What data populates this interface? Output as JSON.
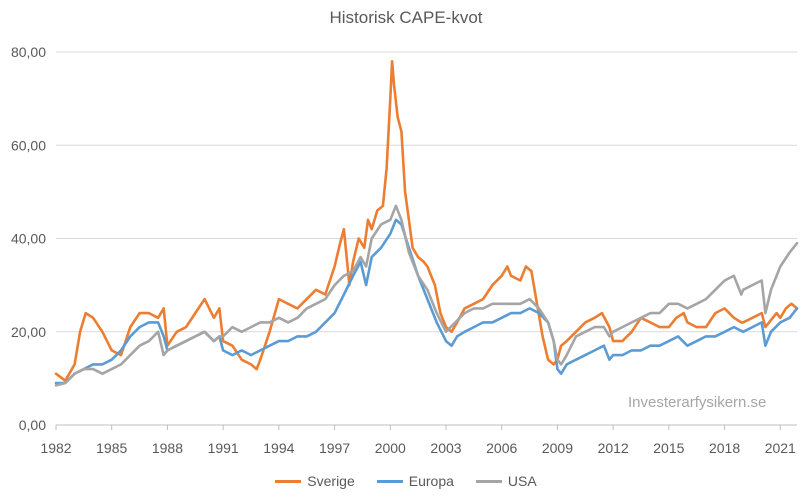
{
  "chart_data": {
    "type": "line",
    "title": "Historisk CAPE-kvot",
    "xlabel": "",
    "ylabel": "",
    "xlim": [
      1982,
      2021.9
    ],
    "ylim": [
      0,
      80
    ],
    "x_ticks": [
      "1982",
      "1985",
      "1988",
      "1991",
      "1994",
      "1997",
      "2000",
      "2003",
      "2006",
      "2009",
      "2012",
      "2015",
      "2018",
      "2021"
    ],
    "y_ticks": [
      "0,00",
      "20,00",
      "40,00",
      "60,00",
      "80,00"
    ],
    "grid": "horizontal",
    "legend_position": "bottom",
    "watermark": "Investerarfysikern.se",
    "series": [
      {
        "name": "Sverige",
        "color": "#ED7D31",
        "x": [
          1982.0,
          1982.5,
          1983.0,
          1983.3,
          1983.6,
          1984.0,
          1984.5,
          1985.0,
          1985.5,
          1986.0,
          1986.5,
          1987.0,
          1987.5,
          1987.8,
          1988.0,
          1988.5,
          1989.0,
          1989.5,
          1990.0,
          1990.5,
          1990.8,
          1991.0,
          1991.5,
          1992.0,
          1992.5,
          1992.8,
          1993.0,
          1993.5,
          1994.0,
          1994.5,
          1995.0,
          1995.5,
          1996.0,
          1996.5,
          1997.0,
          1997.3,
          1997.5,
          1997.8,
          1998.0,
          1998.3,
          1998.6,
          1998.8,
          1999.0,
          1999.3,
          1999.6,
          1999.8,
          2000.0,
          2000.1,
          2000.2,
          2000.4,
          2000.6,
          2000.8,
          2001.0,
          2001.2,
          2001.5,
          2001.8,
          2002.0,
          2002.4,
          2002.7,
          2003.0,
          2003.3,
          2003.6,
          2004.0,
          2004.5,
          2005.0,
          2005.5,
          2006.0,
          2006.3,
          2006.5,
          2007.0,
          2007.3,
          2007.6,
          2007.9,
          2008.2,
          2008.5,
          2008.8,
          2009.0,
          2009.2,
          2009.5,
          2010.0,
          2010.5,
          2011.0,
          2011.4,
          2011.8,
          2012.0,
          2012.5,
          2013.0,
          2013.5,
          2014.0,
          2014.5,
          2015.0,
          2015.4,
          2015.8,
          2016.0,
          2016.5,
          2017.0,
          2017.5,
          2018.0,
          2018.5,
          2018.9,
          2019.0,
          2019.5,
          2020.0,
          2020.2,
          2020.4,
          2020.8,
          2021.0,
          2021.3,
          2021.6,
          2021.9
        ],
        "values": [
          11,
          9.5,
          13,
          20,
          24,
          23,
          20,
          16,
          15,
          21,
          24,
          24,
          23,
          25,
          17,
          20,
          21,
          24,
          27,
          23,
          25,
          18,
          17,
          14,
          13,
          12,
          14,
          20,
          27,
          26,
          25,
          27,
          29,
          28,
          34,
          39,
          42,
          30,
          35,
          40,
          38,
          44,
          42,
          46,
          47,
          55,
          70,
          78,
          73,
          66,
          63,
          50,
          44,
          38,
          36,
          35,
          34,
          30,
          24,
          21,
          20,
          22,
          25,
          26,
          27,
          30,
          32,
          34,
          32,
          31,
          34,
          33,
          26,
          19,
          14,
          13,
          14,
          17,
          18,
          20,
          22,
          23,
          24,
          21,
          18,
          18,
          20,
          23,
          22,
          21,
          21,
          23,
          24,
          22,
          21,
          21,
          24,
          25,
          23,
          22,
          22,
          23,
          24,
          21,
          22,
          24,
          23,
          25,
          26,
          25
        ]
      },
      {
        "name": "Europa",
        "color": "#5B9BD5",
        "x": [
          1982.0,
          1982.5,
          1983.0,
          1983.5,
          1984.0,
          1984.5,
          1985.0,
          1985.5,
          1986.0,
          1986.5,
          1987.0,
          1987.5,
          1987.8,
          1988.0,
          1988.5,
          1989.0,
          1989.5,
          1990.0,
          1990.5,
          1990.8,
          1991.0,
          1991.5,
          1992.0,
          1992.5,
          1993.0,
          1993.5,
          1994.0,
          1994.5,
          1995.0,
          1995.5,
          1996.0,
          1996.5,
          1997.0,
          1997.5,
          1998.0,
          1998.4,
          1998.7,
          1999.0,
          1999.5,
          2000.0,
          2000.3,
          2000.6,
          2001.0,
          2001.5,
          2002.0,
          2002.5,
          2003.0,
          2003.3,
          2003.6,
          2004.0,
          2004.5,
          2005.0,
          2005.5,
          2006.0,
          2006.5,
          2007.0,
          2007.5,
          2008.0,
          2008.5,
          2008.8,
          2009.0,
          2009.2,
          2009.5,
          2010.0,
          2010.5,
          2011.0,
          2011.5,
          2011.8,
          2012.0,
          2012.5,
          2013.0,
          2013.5,
          2014.0,
          2014.5,
          2015.0,
          2015.5,
          2016.0,
          2016.5,
          2017.0,
          2017.5,
          2018.0,
          2018.5,
          2019.0,
          2019.5,
          2020.0,
          2020.2,
          2020.5,
          2021.0,
          2021.5,
          2021.9
        ],
        "values": [
          9,
          9,
          11,
          12,
          13,
          13,
          14,
          16,
          19,
          21,
          22,
          22,
          19,
          16,
          17,
          18,
          19,
          20,
          18,
          19,
          16,
          15,
          16,
          15,
          16,
          17,
          18,
          18,
          19,
          19,
          20,
          22,
          24,
          28,
          32,
          35,
          30,
          36,
          38,
          41,
          44,
          43,
          38,
          32,
          27,
          22,
          18,
          17,
          19,
          20,
          21,
          22,
          22,
          23,
          24,
          24,
          25,
          24,
          22,
          18,
          12,
          11,
          13,
          14,
          15,
          16,
          17,
          14,
          15,
          15,
          16,
          16,
          17,
          17,
          18,
          19,
          17,
          18,
          19,
          19,
          20,
          21,
          20,
          21,
          22,
          17,
          20,
          22,
          23,
          25
        ]
      },
      {
        "name": "USA",
        "color": "#A5A5A5",
        "x": [
          1982.0,
          1982.5,
          1983.0,
          1983.5,
          1984.0,
          1984.5,
          1985.0,
          1985.5,
          1986.0,
          1986.5,
          1987.0,
          1987.5,
          1987.8,
          1988.0,
          1988.5,
          1989.0,
          1989.5,
          1990.0,
          1990.5,
          1990.8,
          1991.0,
          1991.5,
          1992.0,
          1992.5,
          1993.0,
          1993.5,
          1994.0,
          1994.5,
          1995.0,
          1995.5,
          1996.0,
          1996.5,
          1997.0,
          1997.5,
          1998.0,
          1998.4,
          1998.7,
          1999.0,
          1999.5,
          2000.0,
          2000.3,
          2000.6,
          2001.0,
          2001.5,
          2002.0,
          2002.5,
          2003.0,
          2003.5,
          2004.0,
          2004.5,
          2005.0,
          2005.5,
          2006.0,
          2006.5,
          2007.0,
          2007.5,
          2008.0,
          2008.5,
          2008.8,
          2009.0,
          2009.2,
          2009.5,
          2010.0,
          2010.5,
          2011.0,
          2011.5,
          2011.8,
          2012.0,
          2012.5,
          2013.0,
          2013.5,
          2014.0,
          2014.5,
          2015.0,
          2015.5,
          2016.0,
          2016.5,
          2017.0,
          2017.5,
          2018.0,
          2018.5,
          2018.9,
          2019.0,
          2019.5,
          2020.0,
          2020.2,
          2020.5,
          2021.0,
          2021.5,
          2021.9
        ],
        "values": [
          8.5,
          9,
          11,
          12,
          12,
          11,
          12,
          13,
          15,
          17,
          18,
          20,
          15,
          16,
          17,
          18,
          19,
          20,
          18,
          19,
          19,
          21,
          20,
          21,
          22,
          22,
          23,
          22,
          23,
          25,
          26,
          27,
          30,
          32,
          33,
          36,
          34,
          40,
          43,
          44,
          47,
          44,
          37,
          32,
          29,
          24,
          20,
          22,
          24,
          25,
          25,
          26,
          26,
          26,
          26,
          27,
          25,
          22,
          18,
          14,
          13,
          15,
          19,
          20,
          21,
          21,
          19,
          20,
          21,
          22,
          23,
          24,
          24,
          26,
          26,
          25,
          26,
          27,
          29,
          31,
          32,
          28,
          29,
          30,
          31,
          24,
          29,
          34,
          37,
          39
        ]
      }
    ]
  }
}
